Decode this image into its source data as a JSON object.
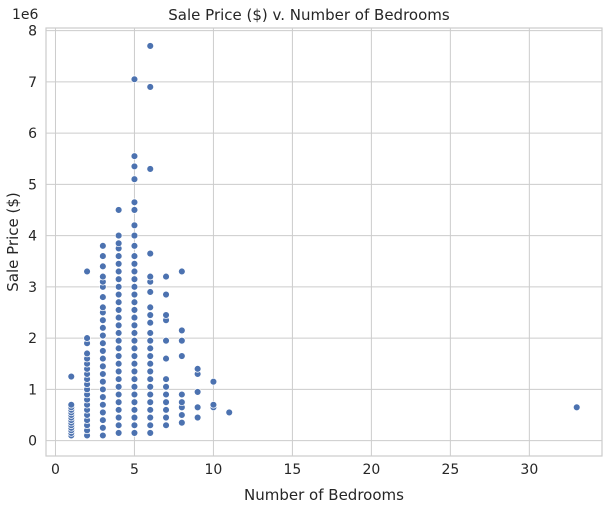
{
  "chart_data": {
    "type": "scatter",
    "title": "Sale Price ($) v. Number of Bedrooms",
    "xlabel": "Number of Bedrooms",
    "ylabel": "Sale Price ($)",
    "y_offset_label": "1e6",
    "xlim": [
      -0.6,
      34.6
    ],
    "ylim": [
      -300000,
      8050000
    ],
    "x_ticks": [
      0,
      5,
      10,
      15,
      20,
      25,
      30
    ],
    "y_ticks": [
      0,
      1000000,
      2000000,
      3000000,
      4000000,
      5000000,
      6000000,
      7000000,
      8000000
    ],
    "y_tick_labels": [
      "0",
      "1",
      "2",
      "3",
      "4",
      "5",
      "6",
      "7",
      "8"
    ],
    "grid": true,
    "marker_color": "#4c72b0",
    "marker_edge_color": "#ffffff",
    "series": [
      {
        "points": [
          [
            1,
            100000
          ],
          [
            1,
            150000
          ],
          [
            1,
            200000
          ],
          [
            1,
            250000
          ],
          [
            1,
            300000
          ],
          [
            1,
            350000
          ],
          [
            1,
            400000
          ],
          [
            1,
            450000
          ],
          [
            1,
            500000
          ],
          [
            1,
            550000
          ],
          [
            1,
            600000
          ],
          [
            1,
            650000
          ],
          [
            1,
            700000
          ],
          [
            1,
            1250000
          ],
          [
            2,
            100000
          ],
          [
            2,
            200000
          ],
          [
            2,
            300000
          ],
          [
            2,
            400000
          ],
          [
            2,
            500000
          ],
          [
            2,
            600000
          ],
          [
            2,
            700000
          ],
          [
            2,
            800000
          ],
          [
            2,
            900000
          ],
          [
            2,
            1000000
          ],
          [
            2,
            1100000
          ],
          [
            2,
            1200000
          ],
          [
            2,
            1300000
          ],
          [
            2,
            1400000
          ],
          [
            2,
            1500000
          ],
          [
            2,
            1600000
          ],
          [
            2,
            1700000
          ],
          [
            2,
            1900000
          ],
          [
            2,
            2000000
          ],
          [
            2,
            3300000
          ],
          [
            3,
            100000
          ],
          [
            3,
            250000
          ],
          [
            3,
            400000
          ],
          [
            3,
            550000
          ],
          [
            3,
            700000
          ],
          [
            3,
            850000
          ],
          [
            3,
            1000000
          ],
          [
            3,
            1150000
          ],
          [
            3,
            1300000
          ],
          [
            3,
            1450000
          ],
          [
            3,
            1600000
          ],
          [
            3,
            1750000
          ],
          [
            3,
            1900000
          ],
          [
            3,
            2050000
          ],
          [
            3,
            2200000
          ],
          [
            3,
            2350000
          ],
          [
            3,
            2500000
          ],
          [
            3,
            2600000
          ],
          [
            3,
            2800000
          ],
          [
            3,
            3000000
          ],
          [
            3,
            3100000
          ],
          [
            3,
            3200000
          ],
          [
            3,
            3400000
          ],
          [
            3,
            3600000
          ],
          [
            3,
            3800000
          ],
          [
            4,
            150000
          ],
          [
            4,
            300000
          ],
          [
            4,
            450000
          ],
          [
            4,
            600000
          ],
          [
            4,
            750000
          ],
          [
            4,
            900000
          ],
          [
            4,
            1050000
          ],
          [
            4,
            1200000
          ],
          [
            4,
            1350000
          ],
          [
            4,
            1500000
          ],
          [
            4,
            1650000
          ],
          [
            4,
            1800000
          ],
          [
            4,
            1950000
          ],
          [
            4,
            2100000
          ],
          [
            4,
            2250000
          ],
          [
            4,
            2400000
          ],
          [
            4,
            2550000
          ],
          [
            4,
            2700000
          ],
          [
            4,
            2850000
          ],
          [
            4,
            3000000
          ],
          [
            4,
            3150000
          ],
          [
            4,
            3300000
          ],
          [
            4,
            3450000
          ],
          [
            4,
            3600000
          ],
          [
            4,
            3750000
          ],
          [
            4,
            3850000
          ],
          [
            4,
            4000000
          ],
          [
            4,
            4500000
          ],
          [
            5,
            150000
          ],
          [
            5,
            300000
          ],
          [
            5,
            450000
          ],
          [
            5,
            600000
          ],
          [
            5,
            750000
          ],
          [
            5,
            900000
          ],
          [
            5,
            1050000
          ],
          [
            5,
            1200000
          ],
          [
            5,
            1350000
          ],
          [
            5,
            1500000
          ],
          [
            5,
            1650000
          ],
          [
            5,
            1800000
          ],
          [
            5,
            1950000
          ],
          [
            5,
            2100000
          ],
          [
            5,
            2250000
          ],
          [
            5,
            2400000
          ],
          [
            5,
            2550000
          ],
          [
            5,
            2700000
          ],
          [
            5,
            2850000
          ],
          [
            5,
            3000000
          ],
          [
            5,
            3150000
          ],
          [
            5,
            3300000
          ],
          [
            5,
            3450000
          ],
          [
            5,
            3600000
          ],
          [
            5,
            3800000
          ],
          [
            5,
            4000000
          ],
          [
            5,
            4200000
          ],
          [
            5,
            4500000
          ],
          [
            5,
            4650000
          ],
          [
            5,
            5100000
          ],
          [
            5,
            5350000
          ],
          [
            5,
            5550000
          ],
          [
            5,
            7050000
          ],
          [
            6,
            150000
          ],
          [
            6,
            300000
          ],
          [
            6,
            450000
          ],
          [
            6,
            600000
          ],
          [
            6,
            750000
          ],
          [
            6,
            900000
          ],
          [
            6,
            1050000
          ],
          [
            6,
            1200000
          ],
          [
            6,
            1350000
          ],
          [
            6,
            1500000
          ],
          [
            6,
            1650000
          ],
          [
            6,
            1800000
          ],
          [
            6,
            1950000
          ],
          [
            6,
            2100000
          ],
          [
            6,
            2300000
          ],
          [
            6,
            2450000
          ],
          [
            6,
            2600000
          ],
          [
            6,
            2900000
          ],
          [
            6,
            3100000
          ],
          [
            6,
            3200000
          ],
          [
            6,
            3650000
          ],
          [
            6,
            5300000
          ],
          [
            6,
            6900000
          ],
          [
            6,
            7700000
          ],
          [
            7,
            300000
          ],
          [
            7,
            450000
          ],
          [
            7,
            600000
          ],
          [
            7,
            750000
          ],
          [
            7,
            900000
          ],
          [
            7,
            1050000
          ],
          [
            7,
            1200000
          ],
          [
            7,
            1600000
          ],
          [
            7,
            1950000
          ],
          [
            7,
            2350000
          ],
          [
            7,
            2450000
          ],
          [
            7,
            2850000
          ],
          [
            7,
            3200000
          ],
          [
            8,
            350000
          ],
          [
            8,
            500000
          ],
          [
            8,
            650000
          ],
          [
            8,
            750000
          ],
          [
            8,
            900000
          ],
          [
            8,
            1650000
          ],
          [
            8,
            1950000
          ],
          [
            8,
            2150000
          ],
          [
            8,
            3300000
          ],
          [
            9,
            450000
          ],
          [
            9,
            650000
          ],
          [
            9,
            950000
          ],
          [
            9,
            1300000
          ],
          [
            9,
            1400000
          ],
          [
            10,
            650000
          ],
          [
            10,
            700000
          ],
          [
            10,
            1150000
          ],
          [
            11,
            550000
          ],
          [
            33,
            650000
          ]
        ]
      }
    ]
  }
}
